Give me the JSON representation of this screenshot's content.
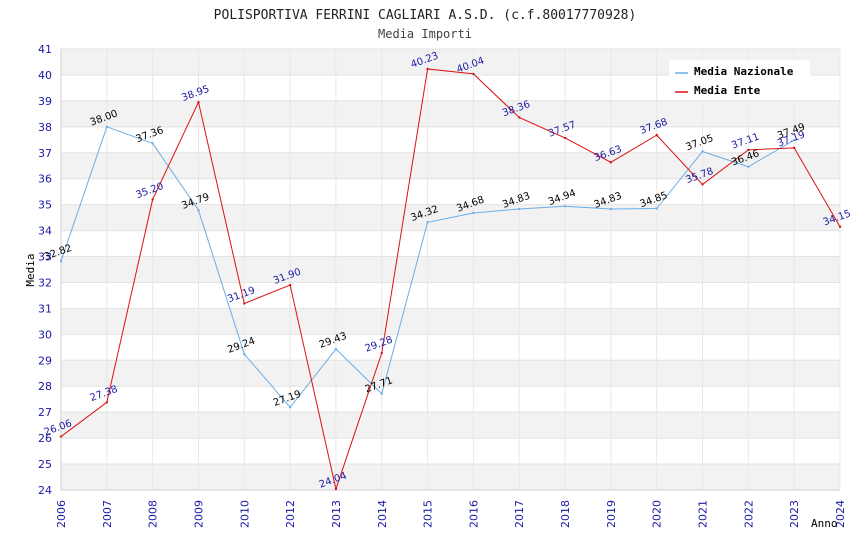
{
  "chart_data": {
    "type": "line",
    "title": "POLISPORTIVA FERRINI CAGLIARI A.S.D. (c.f.80017770928)",
    "subtitle": "Media Importi",
    "xlabel": "Anno",
    "ylabel": "Media",
    "ylim": [
      24,
      41
    ],
    "yticks": [
      "24",
      "25",
      "26",
      "27",
      "28",
      "29",
      "30",
      "31",
      "32",
      "33",
      "34",
      "35",
      "36",
      "37",
      "38",
      "39",
      "40",
      "41"
    ],
    "categories": [
      "2006",
      "2007",
      "2008",
      "2009",
      "2010",
      "2012",
      "2013",
      "2014",
      "2015",
      "2016",
      "2017",
      "2018",
      "2019",
      "2020",
      "2021",
      "2022",
      "2023",
      "2024"
    ],
    "legend_position": "top-right",
    "series": [
      {
        "name": "Media Nazionale",
        "color": "#6aaee8",
        "values": [
          32.82,
          38.0,
          37.36,
          34.79,
          29.24,
          27.19,
          29.43,
          27.71,
          34.32,
          34.68,
          34.83,
          34.94,
          34.83,
          34.85,
          37.05,
          36.46,
          37.49,
          null
        ],
        "labels": [
          "32.82",
          "38.00",
          "37.36",
          "34.79",
          "29.24",
          "27.19",
          "29.43",
          "27.71",
          "34.32",
          "34.68",
          "34.83",
          "34.94",
          "34.83",
          "34.85",
          "37.05",
          "36.46",
          "37.49",
          ""
        ]
      },
      {
        "name": "Media Ente",
        "color": "#dd1111",
        "values": [
          26.06,
          27.38,
          35.2,
          38.95,
          31.19,
          31.9,
          24.04,
          29.28,
          40.23,
          40.04,
          38.36,
          37.57,
          36.63,
          37.68,
          35.78,
          37.11,
          37.19,
          34.15
        ],
        "labels": [
          "26.06",
          "27.38",
          "35.20",
          "38.95",
          "31.19",
          "31.90",
          "24.04",
          "29.28",
          "40.23",
          "40.04",
          "38.36",
          "37.57",
          "36.63",
          "37.68",
          "35.78",
          "37.11",
          "37.19",
          "34.15"
        ]
      }
    ]
  }
}
